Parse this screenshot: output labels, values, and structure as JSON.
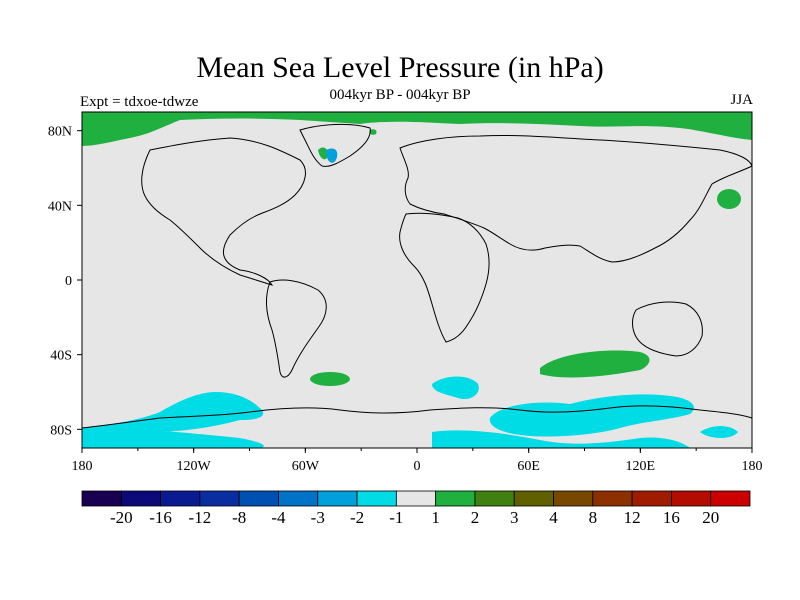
{
  "title": "Mean Sea Level Pressure (in hPa)",
  "subtitle": "004kyr BP - 004kyr BP",
  "experiment": "Expt = tdxoe-tdwze",
  "season": "JJA",
  "map": {
    "lon_ticks": [
      "180",
      "120W",
      "60W",
      "0",
      "60E",
      "120E",
      "180"
    ],
    "lat_ticks": [
      "80N",
      "40N",
      "0",
      "40S",
      "80S"
    ],
    "background_color": "#e6e6e6",
    "coastline_color": "#000000"
  },
  "colorbar": {
    "labels": [
      "-20",
      "-16",
      "-12",
      "-8",
      "-4",
      "-3",
      "-2",
      "-1",
      "1",
      "2",
      "3",
      "4",
      "8",
      "12",
      "16",
      "20"
    ],
    "colors": [
      "#1a0050",
      "#0c0a78",
      "#0a1a90",
      "#0a2ea0",
      "#0050b4",
      "#0073c8",
      "#00a0dc",
      "#00dce6",
      "#e6e6e6",
      "#20b040",
      "#408010",
      "#606000",
      "#784800",
      "#8c3000",
      "#a01c00",
      "#b40c00",
      "#cc0000"
    ]
  }
}
